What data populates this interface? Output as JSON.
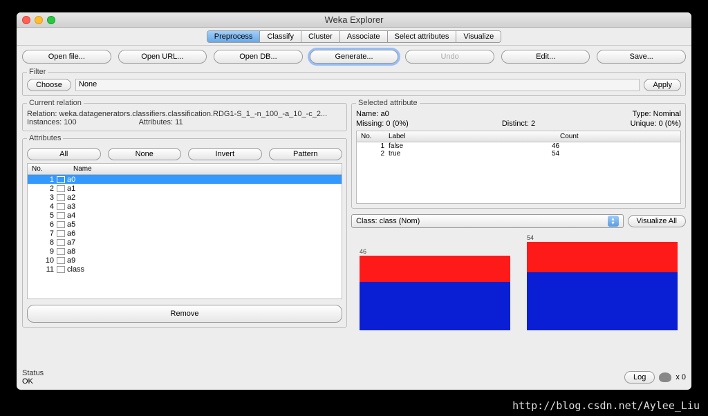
{
  "window": {
    "title": "Weka Explorer"
  },
  "tabs": [
    "Preprocess",
    "Classify",
    "Cluster",
    "Associate",
    "Select attributes",
    "Visualize"
  ],
  "active_tab": 0,
  "toolbar": {
    "open_file": "Open file...",
    "open_url": "Open URL...",
    "open_db": "Open DB...",
    "generate": "Generate...",
    "undo": "Undo",
    "edit": "Edit...",
    "save": "Save..."
  },
  "filter": {
    "legend": "Filter",
    "choose": "Choose",
    "value": "None",
    "apply": "Apply"
  },
  "relation": {
    "legend": "Current relation",
    "label_relation": "Relation:",
    "relation": "weka.datagenerators.classifiers.classification.RDG1-S_1_-n_100_-a_10_-c_2...",
    "label_instances": "Instances:",
    "instances": "100",
    "label_attrs": "Attributes:",
    "attributes": "11"
  },
  "attrs_panel": {
    "legend": "Attributes",
    "all": "All",
    "none": "None",
    "invert": "Invert",
    "pattern": "Pattern",
    "hdr_no": "No.",
    "hdr_name": "Name",
    "rows": [
      {
        "n": "1",
        "name": "a0",
        "sel": true
      },
      {
        "n": "2",
        "name": "a1",
        "sel": false
      },
      {
        "n": "3",
        "name": "a2",
        "sel": false
      },
      {
        "n": "4",
        "name": "a3",
        "sel": false
      },
      {
        "n": "5",
        "name": "a4",
        "sel": false
      },
      {
        "n": "6",
        "name": "a5",
        "sel": false
      },
      {
        "n": "7",
        "name": "a6",
        "sel": false
      },
      {
        "n": "8",
        "name": "a7",
        "sel": false
      },
      {
        "n": "9",
        "name": "a8",
        "sel": false
      },
      {
        "n": "10",
        "name": "a9",
        "sel": false
      },
      {
        "n": "11",
        "name": "class",
        "sel": false
      }
    ],
    "remove": "Remove"
  },
  "selected": {
    "legend": "Selected attribute",
    "name_lbl": "Name:",
    "name": "a0",
    "type_lbl": "Type:",
    "type": "Nominal",
    "missing_lbl": "Missing:",
    "missing": "0 (0%)",
    "distinct_lbl": "Distinct:",
    "distinct": "2",
    "unique_lbl": "Unique:",
    "unique": "0 (0%)",
    "hdr_no": "No.",
    "hdr_label": "Label",
    "hdr_count": "Count",
    "dist": [
      {
        "n": "1",
        "label": "false",
        "count": "46"
      },
      {
        "n": "2",
        "label": "true",
        "count": "54"
      }
    ]
  },
  "class_combo": {
    "label": "Class: class (Nom)",
    "vis_all": "Visualize All"
  },
  "chart": {
    "bars": [
      {
        "label": "46",
        "height": 108,
        "red": 38,
        "blue": 70
      },
      {
        "label": "54",
        "height": 128,
        "red": 44,
        "blue": 84
      }
    ],
    "colors": {
      "red": "#ff1a1a",
      "blue": "#0a1fd4"
    }
  },
  "status": {
    "label": "Status",
    "text": "OK",
    "log": "Log",
    "x0": "x 0"
  },
  "watermark": "http://blog.csdn.net/Aylee_Liu"
}
